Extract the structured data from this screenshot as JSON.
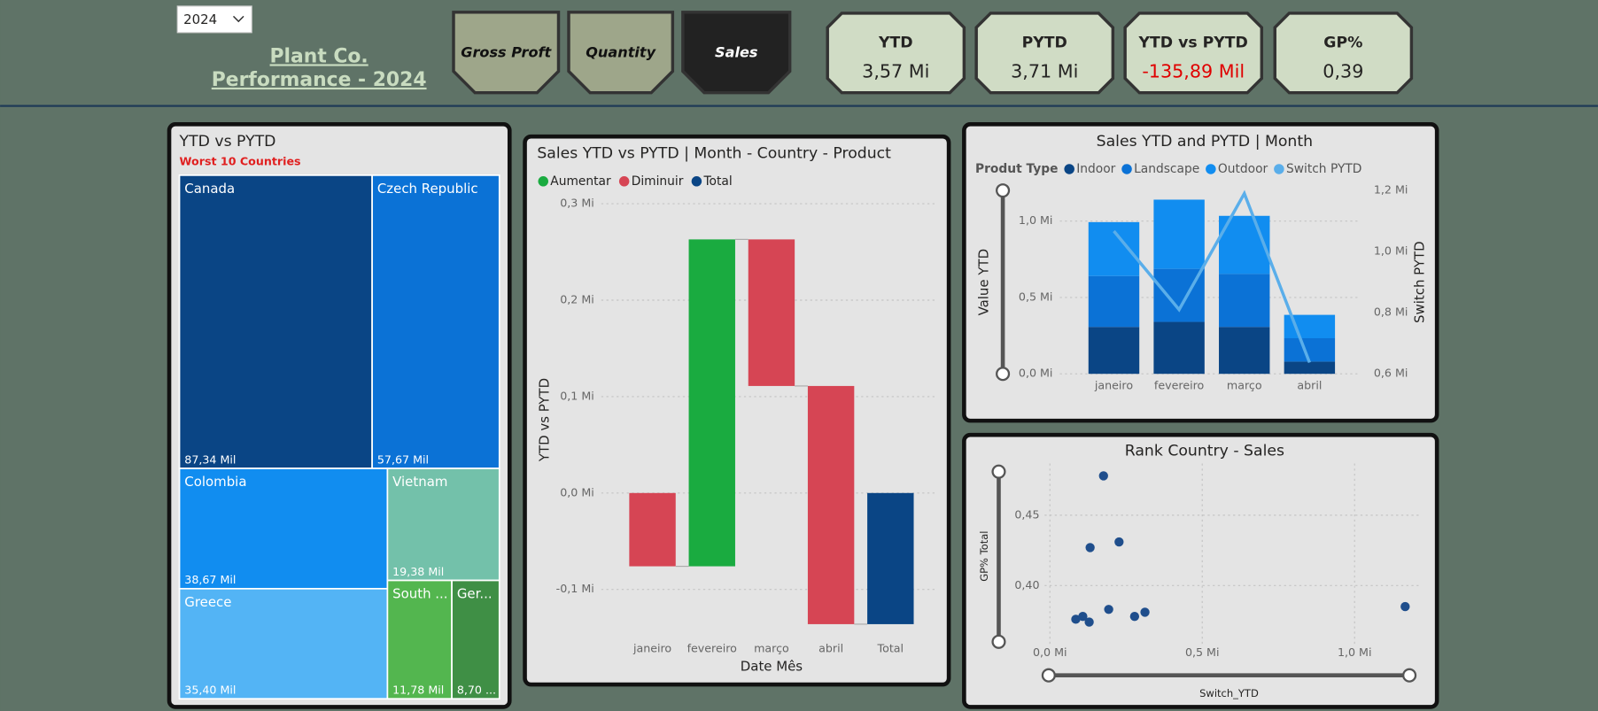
{
  "header": {
    "year_select": "2024",
    "title_lines": [
      "Plant Co.",
      "Performance - 2024"
    ],
    "buttons": [
      "Gross Proft",
      "Quantity",
      "Sales"
    ],
    "kpis": [
      {
        "label": "YTD",
        "value": "3,57 Mi"
      },
      {
        "label": "PYTD",
        "value": "3,71 Mi"
      },
      {
        "label": "YTD vs PYTD",
        "value": "-135,89 Mil",
        "color": "#e00000"
      },
      {
        "label": "GP%",
        "value": "0,39"
      }
    ]
  },
  "chart_data": [
    {
      "type": "treemap",
      "title": "YTD vs PYTD",
      "subtitle": "Worst 10 Countries",
      "categories": [
        "Canada",
        "Czech Republic",
        "Colombia",
        "Vietnam",
        "Greece",
        "South ...",
        "Ger..."
      ],
      "values": [
        87.34,
        57.67,
        38.67,
        19.38,
        35.4,
        11.78,
        8.7
      ],
      "value_labels": [
        "87,34 Mil",
        "57,67 Mil",
        "38,67 Mil",
        "19,38 Mil",
        "35,40 Mil",
        "11,78 Mil",
        "8,70 ..."
      ],
      "colors": [
        "#0a4585",
        "#0b72d6",
        "#118df0",
        "#73c1aa",
        "#53b4f5",
        "#53b64f",
        "#3f8f45"
      ]
    },
    {
      "type": "waterfall",
      "title": "Sales YTD vs PYTD | Month - Country - Product",
      "legend": [
        {
          "name": "Aumentar",
          "color": "#1aab40"
        },
        {
          "name": "Diminuir",
          "color": "#d64554"
        },
        {
          "name": "Total",
          "color": "#0a4585"
        }
      ],
      "categories": [
        "janeiro",
        "fevereiro",
        "março",
        "abril",
        "Total"
      ],
      "values": [
        -0.076,
        0.339,
        -0.152,
        -0.247,
        -0.136
      ],
      "ylim": [
        -0.15,
        0.3
      ],
      "yticks": [
        {
          "value": -0.1,
          "label": "-0,1 Mi"
        },
        {
          "value": 0,
          "label": "0,0 Mi"
        },
        {
          "value": 0.1,
          "label": "0,1 Mi"
        },
        {
          "value": 0.2,
          "label": "0,2 Mi"
        },
        {
          "value": 0.3,
          "label": "0,3 Mi"
        }
      ],
      "xlabel": "Date Mês",
      "ylabel": "YTD vs PYTD",
      "grid": true
    },
    {
      "type": "combo",
      "title": "Sales YTD and PYTD | Month",
      "legend_title": "Produt Type",
      "categories": [
        "janeiro",
        "fevereiro",
        "março",
        "abril"
      ],
      "series": [
        {
          "name": "Indoor",
          "color": "#0a4585",
          "values": [
            0.307,
            0.34,
            0.307,
            0.08
          ]
        },
        {
          "name": "Landscape",
          "color": "#0b72d6",
          "values": [
            0.333,
            0.347,
            0.347,
            0.153
          ]
        },
        {
          "name": "Outdoor",
          "color": "#118df0",
          "values": [
            0.353,
            0.453,
            0.38,
            0.153
          ]
        },
        {
          "name": "Switch PYTD",
          "color": "#5aaeea",
          "values": [
            1.067,
            0.81,
            1.19,
            0.637
          ],
          "axis": "y2"
        }
      ],
      "ylim": [
        0,
        1.2
      ],
      "yticks": [
        {
          "value": 0,
          "label": "0,0 Mi"
        },
        {
          "value": 0.5,
          "label": "0,5 Mi"
        },
        {
          "value": 1.0,
          "label": "1,0 Mi"
        }
      ],
      "y2lim": [
        0.6,
        1.2
      ],
      "y2ticks": [
        {
          "value": 0.6,
          "label": "0,6 Mi"
        },
        {
          "value": 0.8,
          "label": "0,8 Mi"
        },
        {
          "value": 1.0,
          "label": "1,0 Mi"
        },
        {
          "value": 1.2,
          "label": "1,2 Mi"
        }
      ],
      "ylabel": "Value YTD",
      "y2label": "Switch PYTD",
      "grid": true
    },
    {
      "type": "scatter",
      "title": "Rank Country - Sales",
      "color": "#1f4e8c",
      "x": [
        0.176,
        0.132,
        0.227,
        0.085,
        0.108,
        0.129,
        0.193,
        0.278,
        0.312,
        1.166
      ],
      "y": [
        0.478,
        0.427,
        0.431,
        0.376,
        0.378,
        0.374,
        0.383,
        0.378,
        0.381,
        0.385
      ],
      "xlim": [
        -0.05,
        1.2
      ],
      "ylim": [
        0.36,
        0.485
      ],
      "xticks": [
        {
          "value": 0,
          "label": "0,0 Mi"
        },
        {
          "value": 0.5,
          "label": "0,5 Mi"
        },
        {
          "value": 1.0,
          "label": "1,0 Mi"
        }
      ],
      "yticks": [
        {
          "value": 0.4,
          "label": "0,40"
        },
        {
          "value": 0.45,
          "label": "0,45"
        }
      ],
      "xlabel": "Switch_YTD",
      "ylabel": "GP% Total",
      "grid": true
    }
  ]
}
